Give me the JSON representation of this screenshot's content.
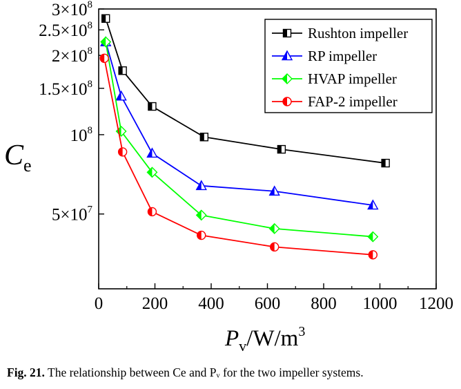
{
  "chart_data": {
    "type": "line",
    "xlabel": "P_v/W/m^3",
    "ylabel": "C_e",
    "xlim": [
      0,
      1200
    ],
    "x_ticks": [
      "0",
      "200",
      "400",
      "600",
      "800",
      "1000",
      "1200"
    ],
    "y_scale": "log",
    "ylim": [
      26000000,
      300000000
    ],
    "y_tick_values": [
      50000000,
      100000000,
      150000000,
      200000000,
      250000000,
      300000000
    ],
    "y_ticks": [
      {
        "mant": "5",
        "exp": "7"
      },
      {
        "mant": "",
        "exp": "8"
      },
      {
        "mant": "1.5",
        "exp": "8"
      },
      {
        "mant": "2",
        "exp": "8"
      },
      {
        "mant": "2.5",
        "exp": "8"
      },
      {
        "mant": "3",
        "exp": "8"
      }
    ],
    "legend_position": "top-right",
    "series": [
      {
        "name": "Rushton impeller",
        "color": "#000000",
        "marker": "square",
        "x": [
          25,
          85,
          190,
          375,
          650,
          1020
        ],
        "y": [
          276000000,
          175000000,
          128000000,
          98000000,
          88000000,
          78000000
        ]
      },
      {
        "name": "RP impeller",
        "color": "#0000ff",
        "marker": "triangle",
        "x": [
          25,
          80,
          190,
          365,
          625,
          975
        ],
        "y": [
          225000000,
          140000000,
          85000000,
          64000000,
          61000000,
          54000000
        ]
      },
      {
        "name": "HVAP impeller",
        "color": "#00ff00",
        "marker": "diamond",
        "x": [
          25,
          80,
          190,
          365,
          625,
          975
        ],
        "y": [
          225000000,
          103000000,
          72000000,
          49500000,
          44000000,
          41000000
        ]
      },
      {
        "name": "FAP-2 impeller",
        "color": "#ff0000",
        "marker": "circle",
        "x": [
          20,
          85,
          190,
          365,
          625,
          975
        ],
        "y": [
          195000000,
          86000000,
          51000000,
          41500000,
          37500000,
          35000000
        ]
      }
    ]
  },
  "caption": {
    "label": "Fig. 21.",
    "text": "The relationship between Ce and Pᵥ for the two impeller systems."
  }
}
